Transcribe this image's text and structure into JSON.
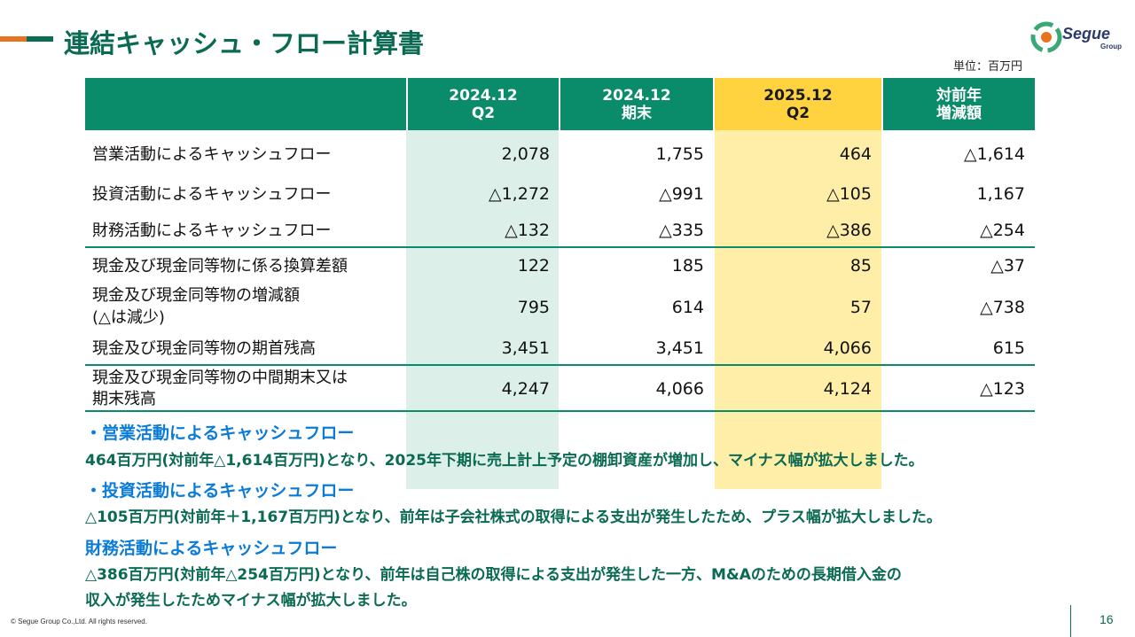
{
  "title": "連結キャッシュ・フロー計算書",
  "logo": {
    "name": "Segue",
    "sub": "Group"
  },
  "unit": "単位：百万円",
  "table": {
    "headers": [
      {
        "line1": "2024.12",
        "line2": "Q2"
      },
      {
        "line1": "2024.12",
        "line2": "期末"
      },
      {
        "line1": "2025.12",
        "line2": "Q2"
      },
      {
        "line1": "対前年",
        "line2": "増減額"
      }
    ],
    "rows": [
      {
        "label": "営業活動によるキャッシュフロー",
        "v": [
          "2,078",
          "1,755",
          "464",
          "△1,614"
        ]
      },
      {
        "label": "投資活動によるキャッシュフロー",
        "v": [
          "△1,272",
          "△991",
          "△105",
          "1,167"
        ]
      },
      {
        "label": "財務活動によるキャッシュフロー",
        "v": [
          "△132",
          "△335",
          "△386",
          "△254"
        ]
      },
      {
        "label": "現金及び現金同等物に係る換算差額",
        "v": [
          "122",
          "185",
          "85",
          "△37"
        ]
      },
      {
        "label": "現金及び現金同等物の増減額",
        "label2": "(△は減少)",
        "v": [
          "795",
          "614",
          "57",
          "△738"
        ]
      },
      {
        "label": "現金及び現金同等物の期首残高",
        "v": [
          "3,451",
          "3,451",
          "4,066",
          "615"
        ]
      },
      {
        "label": "現金及び現金同等物の中間期末又は",
        "label2": "期末残高",
        "v": [
          "4,247",
          "4,066",
          "4,124",
          "△123"
        ]
      }
    ]
  },
  "notes": [
    {
      "head": "・営業活動によるキャッシュフロー",
      "body": [
        "464百万円(対前年△1,614百万円)となり、2025年下期に売上計上予定の棚卸資産が増加し、マイナス幅が拡大しました。"
      ]
    },
    {
      "head": "・投資活動によるキャッシュフロー",
      "body": [
        "△105百万円(対前年＋1,167百万円)となり、前年は子会社株式の取得による支出が発生したため、プラス幅が拡大しました。"
      ]
    },
    {
      "head": "財務活動によるキャッシュフロー",
      "body": [
        "△386百万円(対前年△254百万円)となり、前年は自己株の取得による支出が発生した一方、M&Aのための長期借入金の",
        "収入が発生したためマイナス幅が拡大しました。"
      ]
    }
  ],
  "footer": "© Segue Group Co.,Ltd. All rights reserved.",
  "page_number": "16",
  "colors": {
    "header_green": "#0a8b6a",
    "highlight_yellow": "#ffd23f",
    "title_green": "#0a6a52",
    "note_blue": "#0a7bd6"
  }
}
